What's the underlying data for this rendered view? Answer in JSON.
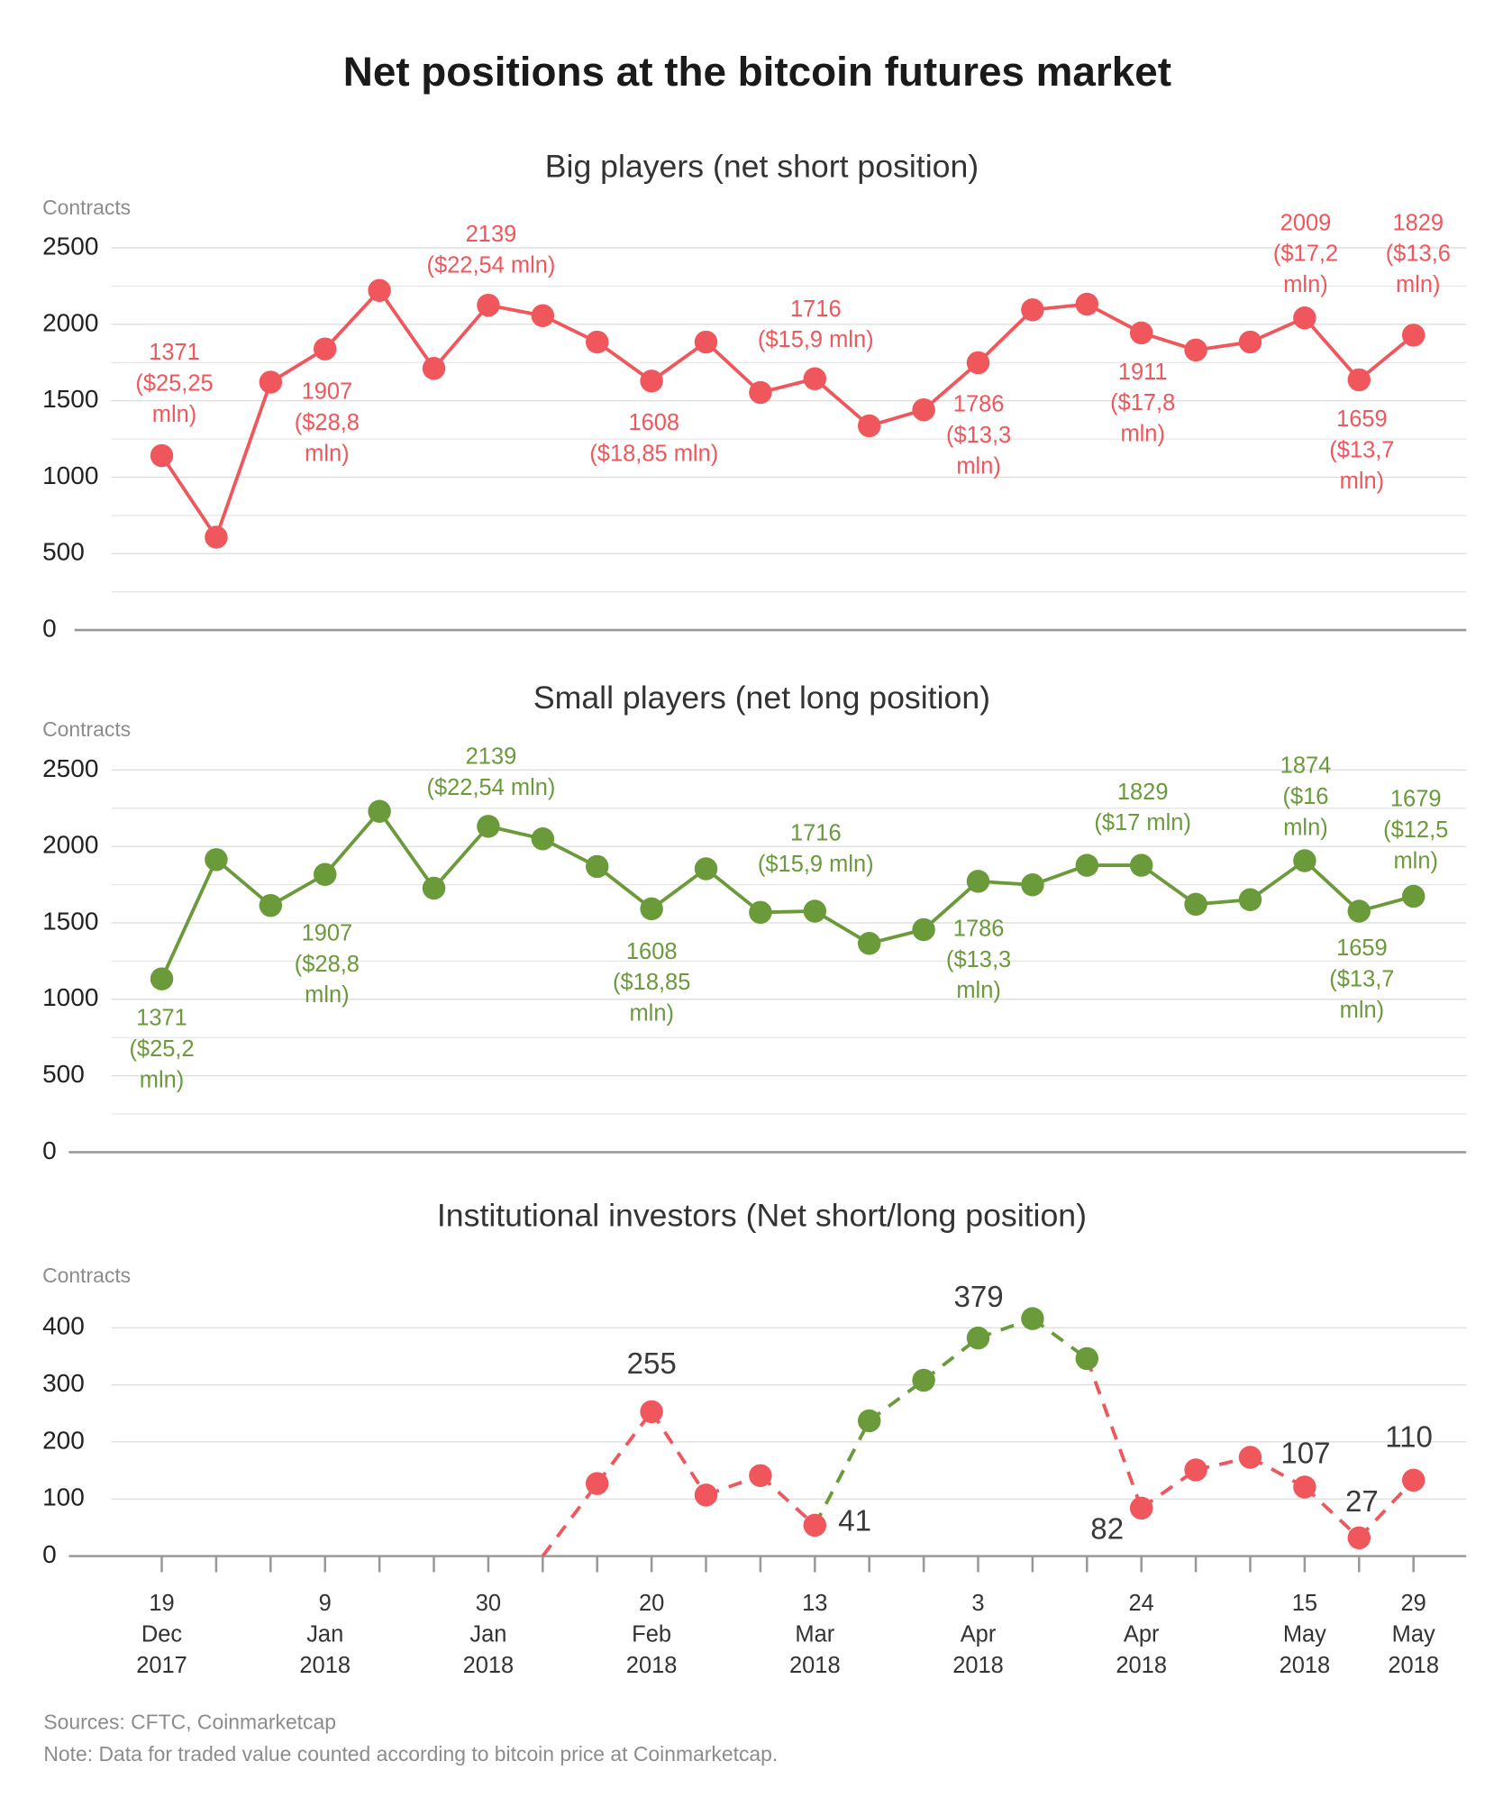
{
  "title": "Net positions at the bitcoin futures market",
  "sources": "Sources: CFTC, Coinmarketcap",
  "note": "Note: Data for traded value counted according to bitcoin price at Coinmarketcap.",
  "chart_data": [
    {
      "type": "line",
      "title": "Big players (net short position)",
      "y_label": "Contracts",
      "series": [
        {
          "color": "#ef575c",
          "values": [
            1141,
            608,
            1622,
            1839,
            2222,
            1712,
            2125,
            2057,
            1884,
            1629,
            1884,
            1554,
            1644,
            1336,
            1441,
            1749,
            2095,
            2132,
            1944,
            1832,
            1884,
            2042,
            1637,
            1929
          ]
        }
      ],
      "ylim": [
        0,
        2500
      ],
      "yticks": [
        0,
        500,
        1000,
        1500,
        2000,
        2500
      ],
      "minor_yticks": [
        250,
        750,
        1250,
        1750,
        2250
      ],
      "grid": true,
      "annotations": [
        "1371\n($25,25\nmln)",
        "1907\n($28,8\nmln)",
        "2139\n($22,54 mln)",
        "1608\n($18,85 mln)",
        "1716\n($15,9 mln)",
        "1786\n($13,3\nmln)",
        "1911\n($17,8\nmln)",
        "2009\n($17,2\nmln)",
        "1659\n($13,7\nmln)",
        "1829\n($13,6\nmln)"
      ]
    },
    {
      "type": "line",
      "title": "Small players (net long position)",
      "y_label": "Contracts",
      "series": [
        {
          "color": "#6a9a3a",
          "values": [
            1134,
            1914,
            1614,
            1817,
            2230,
            1727,
            2132,
            2050,
            1869,
            1592,
            1854,
            1569,
            1577,
            1366,
            1456,
            1772,
            1749,
            1877,
            1877,
            1622,
            1652,
            1907,
            1577,
            1674
          ]
        }
      ],
      "ylim": [
        0,
        2500
      ],
      "yticks": [
        0,
        500,
        1000,
        1500,
        2000,
        2500
      ],
      "minor_yticks": [
        250,
        750,
        1250,
        1750,
        2250
      ],
      "grid": true,
      "annotations": [
        "1371\n($25,2\nmln)",
        "1907\n($28,8\nmln)",
        "2139\n($22,54 mln)",
        "1608\n($18,85\nmln)",
        "1716\n($15,9 mln)",
        "1786\n($13,3\nmln)",
        "1829\n($17 mln)",
        "1874\n($16\nmln)",
        "1659\n($13,7\nmln)",
        "1679\n($12,5\nmln)"
      ]
    },
    {
      "type": "line",
      "title": "Institutional investors (Net short/long position)",
      "y_label": "Contracts",
      "categories": [
        "19\nDec\n2017",
        null,
        null,
        "9\nJan\n2018",
        null,
        null,
        "30\nJan\n2018",
        null,
        null,
        "20\nFeb\n2018",
        null,
        null,
        "13\nMar\n2018",
        null,
        null,
        "3\nApr\n2018",
        null,
        null,
        "24\nApr\n2018",
        null,
        null,
        "15\nMay\n2018",
        null,
        "29\nMay\n2018"
      ],
      "series": [
        {
          "values": [
            null,
            null,
            null,
            null,
            null,
            null,
            null,
            0,
            127,
            253,
            107,
            141,
            54,
            237,
            308,
            382,
            416,
            346,
            84,
            151,
            173,
            121,
            32,
            133
          ],
          "colors": [
            null,
            null,
            null,
            null,
            null,
            null,
            null,
            "#ef575c",
            "#ef575c",
            "#ef575c",
            "#ef575c",
            "#ef575c",
            "#ef575c",
            "#6a9a3a",
            "#6a9a3a",
            "#6a9a3a",
            "#6a9a3a",
            "#6a9a3a",
            "#ef575c",
            "#ef575c",
            "#ef575c",
            "#ef575c",
            "#ef575c",
            "#ef575c"
          ],
          "dashed": true
        }
      ],
      "ylim": [
        0,
        400
      ],
      "yticks": [
        0,
        100,
        200,
        300,
        400
      ],
      "grid": true,
      "annotations": [
        "255",
        "41",
        "379",
        "82",
        "107",
        "27",
        "110"
      ]
    }
  ]
}
